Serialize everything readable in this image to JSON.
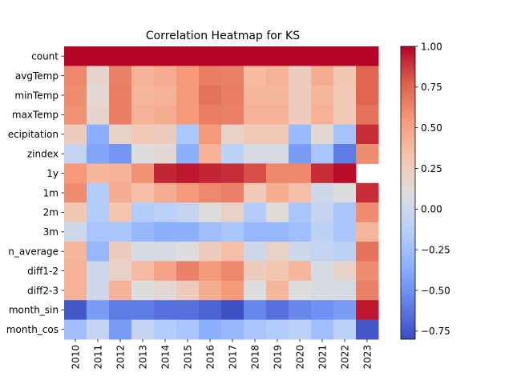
{
  "chart_data": {
    "type": "heatmap",
    "title": "Correlation Heatmap for KS",
    "xlabel": "",
    "ylabel": "",
    "x": [
      "2010",
      "2011",
      "2012",
      "2013",
      "2014",
      "2015",
      "2016",
      "2017",
      "2018",
      "2019",
      "2020",
      "2021",
      "2022",
      "2023"
    ],
    "y": [
      "count",
      "avgTemp",
      "minTemp",
      "maxTemp",
      "precipitation",
      "zindex",
      "1y",
      "1m",
      "2m",
      "3m",
      "month_average",
      "diff1-2",
      "diff2-3",
      "month_sin",
      "month_cos"
    ],
    "y_display": [
      "count",
      "avgTemp",
      "minTemp",
      "maxTemp",
      "ecipitation",
      "zindex",
      "1y",
      "1m",
      "2m",
      "3m",
      "n_average",
      "diff1-2",
      "diff2-3",
      "month_sin",
      "month_cos"
    ],
    "values": [
      [
        1.0,
        1.0,
        1.0,
        1.0,
        1.0,
        1.0,
        1.0,
        1.0,
        1.0,
        1.0,
        1.0,
        1.0,
        1.0,
        1.0
      ],
      [
        0.62,
        0.18,
        0.65,
        0.42,
        0.45,
        0.55,
        0.66,
        0.65,
        0.38,
        0.42,
        0.25,
        0.45,
        0.3,
        0.75
      ],
      [
        0.6,
        0.15,
        0.66,
        0.4,
        0.42,
        0.55,
        0.7,
        0.66,
        0.4,
        0.4,
        0.25,
        0.4,
        0.28,
        0.75
      ],
      [
        0.58,
        0.18,
        0.66,
        0.42,
        0.45,
        0.55,
        0.66,
        0.65,
        0.42,
        0.42,
        0.25,
        0.42,
        0.28,
        0.7
      ],
      [
        0.25,
        -0.35,
        0.2,
        0.28,
        0.25,
        -0.18,
        0.55,
        0.2,
        0.28,
        0.28,
        -0.28,
        0.15,
        -0.22,
        0.9
      ],
      [
        -0.05,
        -0.4,
        -0.48,
        0.1,
        0.15,
        -0.35,
        0.42,
        -0.1,
        0.05,
        0.05,
        -0.45,
        -0.2,
        -0.6,
        0.6
      ],
      [
        0.55,
        0.4,
        0.42,
        0.58,
        0.92,
        0.95,
        0.92,
        0.9,
        0.82,
        0.62,
        0.62,
        0.9,
        0.98,
        null
      ],
      [
        0.6,
        -0.15,
        0.45,
        0.35,
        0.45,
        0.55,
        0.62,
        0.65,
        0.28,
        0.45,
        0.35,
        0.0,
        0.1,
        0.9
      ],
      [
        0.3,
        -0.15,
        0.32,
        -0.15,
        -0.12,
        -0.05,
        0.1,
        0.2,
        -0.15,
        0.12,
        -0.2,
        -0.05,
        -0.2,
        0.6
      ],
      [
        0.0,
        -0.2,
        -0.2,
        -0.3,
        -0.35,
        -0.35,
        -0.25,
        -0.2,
        -0.3,
        -0.3,
        -0.25,
        -0.1,
        -0.2,
        0.4
      ],
      [
        0.4,
        -0.3,
        0.25,
        0.05,
        0.05,
        0.1,
        0.25,
        0.35,
        0.0,
        0.2,
        0.0,
        -0.05,
        -0.1,
        0.7
      ],
      [
        0.42,
        0.0,
        0.2,
        0.38,
        0.5,
        0.65,
        0.55,
        0.62,
        0.25,
        0.3,
        0.4,
        0.05,
        0.2,
        0.6
      ],
      [
        0.42,
        0.0,
        0.42,
        0.1,
        0.15,
        0.25,
        0.45,
        0.55,
        0.1,
        0.4,
        0.1,
        0.05,
        0.05,
        0.65
      ],
      [
        -0.75,
        -0.45,
        -0.6,
        -0.6,
        -0.65,
        -0.65,
        -0.7,
        -0.78,
        -0.55,
        -0.65,
        -0.55,
        -0.5,
        -0.45,
        0.95
      ],
      [
        -0.25,
        -0.05,
        -0.45,
        -0.05,
        -0.15,
        -0.2,
        -0.35,
        -0.3,
        -0.2,
        -0.15,
        -0.1,
        -0.25,
        -0.1,
        -0.75
      ]
    ],
    "colormap": "coolwarm",
    "vmin": -0.8,
    "vmax": 1.0,
    "colorbar": {
      "ticks": [
        1.0,
        0.75,
        0.5,
        0.25,
        0.0,
        -0.25,
        -0.5,
        -0.75
      ],
      "tick_labels": [
        "1.00",
        "0.75",
        "0.50",
        "0.25",
        "0.00",
        "−0.25",
        "−0.50",
        "−0.75"
      ]
    },
    "grid": false,
    "legend": "colorbar-right"
  }
}
